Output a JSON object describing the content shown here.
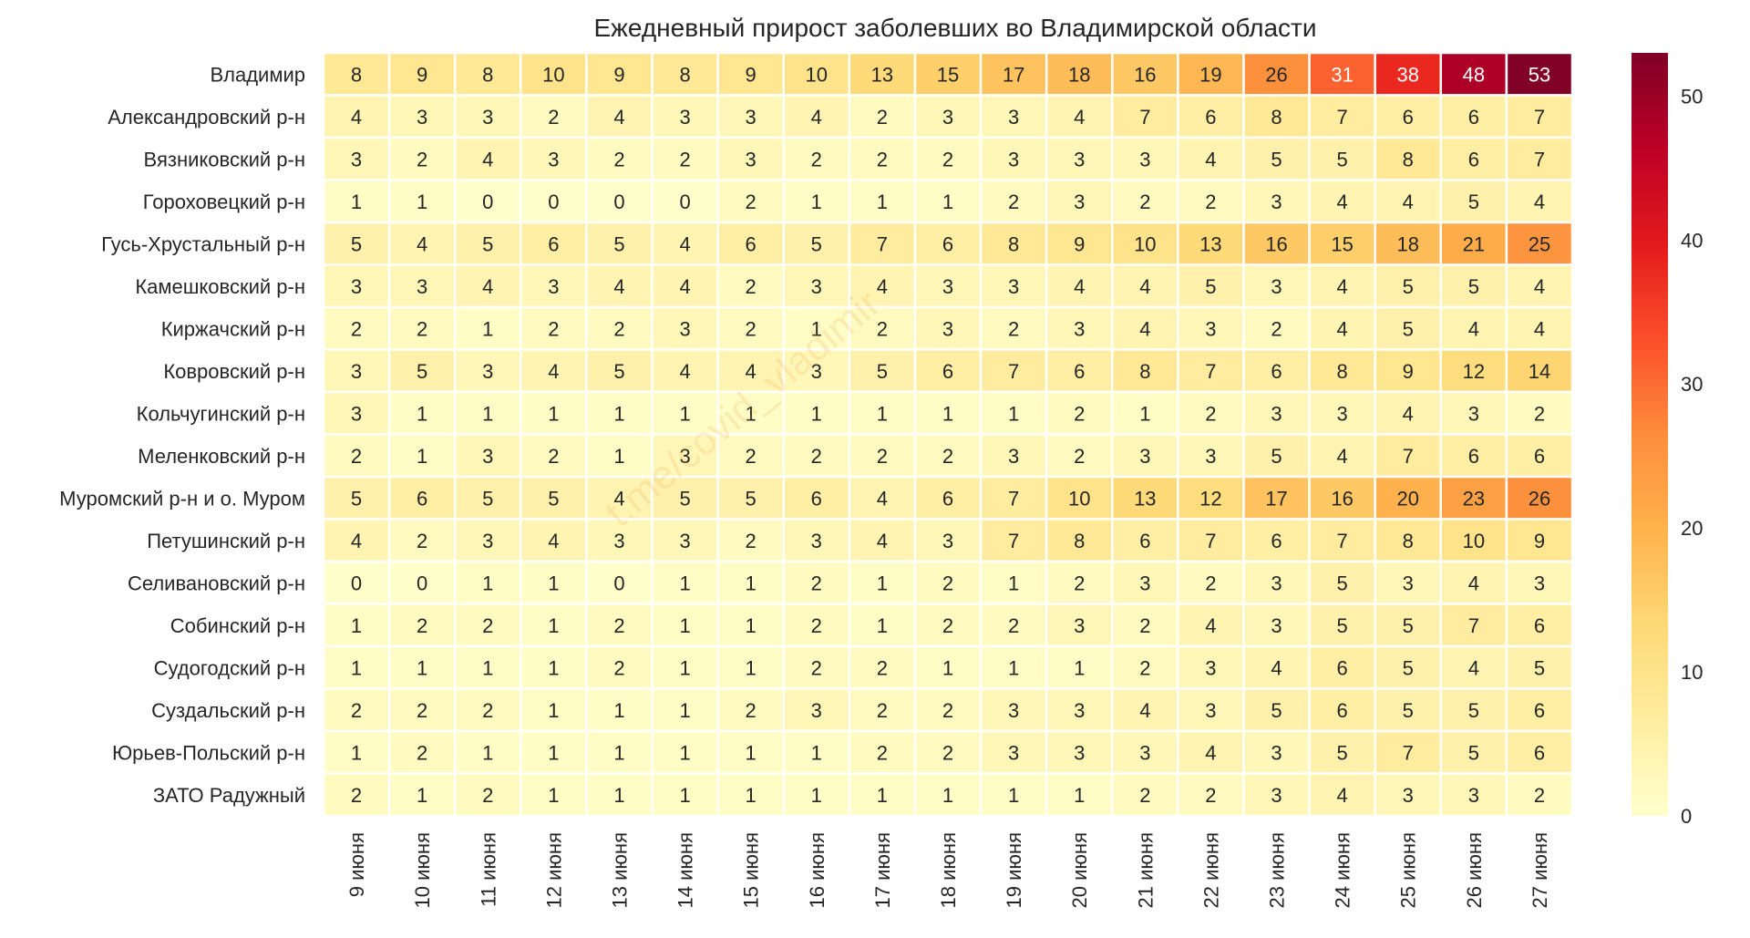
{
  "chart_data": {
    "type": "heatmap",
    "title": "Ежедневный прирост заболевших во Владимирской области",
    "watermark": "t.me/covid_vladimir",
    "columns": [
      "9 июня",
      "10 июня",
      "11 июня",
      "12 июня",
      "13 июня",
      "14 июня",
      "15 июня",
      "16 июня",
      "17 июня",
      "18 июня",
      "19 июня",
      "20 июня",
      "21 июня",
      "22 июня",
      "23 июня",
      "24 июня",
      "25 июня",
      "26 июня",
      "27 июня"
    ],
    "rows": [
      "Владимир",
      "Александровский р-н",
      "Вязниковский р-н",
      "Гороховецкий р-н",
      "Гусь-Хрустальный р-н",
      "Камешковский р-н",
      "Киржачский р-н",
      "Ковровский р-н",
      "Кольчугинский р-н",
      "Меленковский р-н",
      "Муромский р-н и о. Муром",
      "Петушинский р-н",
      "Селивановский р-н",
      "Собинский р-н",
      "Судогодский р-н",
      "Суздальский р-н",
      "Юрьев-Польский р-н",
      "ЗАТО Радужный"
    ],
    "values": [
      [
        8,
        9,
        8,
        10,
        9,
        8,
        9,
        10,
        13,
        15,
        17,
        18,
        16,
        19,
        26,
        31,
        38,
        48,
        53
      ],
      [
        4,
        3,
        3,
        2,
        4,
        3,
        3,
        4,
        2,
        3,
        3,
        4,
        7,
        6,
        8,
        7,
        6,
        6,
        7
      ],
      [
        3,
        2,
        4,
        3,
        2,
        2,
        3,
        2,
        2,
        2,
        3,
        3,
        3,
        4,
        5,
        5,
        8,
        6,
        7
      ],
      [
        1,
        1,
        0,
        0,
        0,
        0,
        2,
        1,
        1,
        1,
        2,
        3,
        2,
        2,
        3,
        4,
        4,
        5,
        4
      ],
      [
        5,
        4,
        5,
        6,
        5,
        4,
        6,
        5,
        7,
        6,
        8,
        9,
        10,
        13,
        16,
        15,
        18,
        21,
        25
      ],
      [
        3,
        3,
        4,
        3,
        4,
        4,
        2,
        3,
        4,
        3,
        3,
        4,
        4,
        5,
        3,
        4,
        5,
        5,
        4
      ],
      [
        2,
        2,
        1,
        2,
        2,
        3,
        2,
        1,
        2,
        3,
        2,
        3,
        4,
        3,
        2,
        4,
        5,
        4,
        4
      ],
      [
        3,
        5,
        3,
        4,
        5,
        4,
        4,
        3,
        5,
        6,
        7,
        6,
        8,
        7,
        6,
        8,
        9,
        12,
        14
      ],
      [
        3,
        1,
        1,
        1,
        1,
        1,
        1,
        1,
        1,
        1,
        1,
        2,
        1,
        2,
        3,
        3,
        4,
        3,
        2
      ],
      [
        2,
        1,
        3,
        2,
        1,
        3,
        2,
        2,
        2,
        2,
        3,
        2,
        3,
        3,
        5,
        4,
        7,
        6,
        6
      ],
      [
        5,
        6,
        5,
        5,
        4,
        5,
        5,
        6,
        4,
        6,
        7,
        10,
        13,
        12,
        17,
        16,
        20,
        23,
        26
      ],
      [
        4,
        2,
        3,
        4,
        3,
        3,
        2,
        3,
        4,
        3,
        7,
        8,
        6,
        7,
        6,
        7,
        8,
        10,
        9
      ],
      [
        0,
        0,
        1,
        1,
        0,
        1,
        1,
        2,
        1,
        2,
        1,
        2,
        3,
        2,
        3,
        5,
        3,
        4,
        3
      ],
      [
        1,
        2,
        2,
        1,
        2,
        1,
        1,
        2,
        1,
        2,
        2,
        3,
        2,
        4,
        3,
        5,
        5,
        7,
        6
      ],
      [
        1,
        1,
        1,
        1,
        2,
        1,
        1,
        2,
        2,
        1,
        1,
        1,
        2,
        3,
        4,
        6,
        5,
        4,
        5
      ],
      [
        2,
        2,
        2,
        1,
        1,
        1,
        2,
        3,
        2,
        2,
        3,
        3,
        4,
        3,
        5,
        6,
        5,
        5,
        6
      ],
      [
        1,
        2,
        1,
        1,
        1,
        1,
        1,
        1,
        2,
        2,
        3,
        3,
        3,
        4,
        3,
        5,
        7,
        5,
        6
      ],
      [
        2,
        1,
        2,
        1,
        1,
        1,
        1,
        1,
        1,
        1,
        1,
        1,
        2,
        2,
        3,
        4,
        3,
        3,
        2
      ]
    ],
    "colorbar": {
      "min": 0,
      "max": 53,
      "ticks": [
        0,
        10,
        20,
        30,
        40,
        50
      ]
    },
    "colormap": [
      "#ffffcc",
      "#ffeda0",
      "#fed976",
      "#feb24c",
      "#fd8d3c",
      "#fc4e2a",
      "#e31a1c",
      "#bd0026",
      "#800026"
    ]
  }
}
